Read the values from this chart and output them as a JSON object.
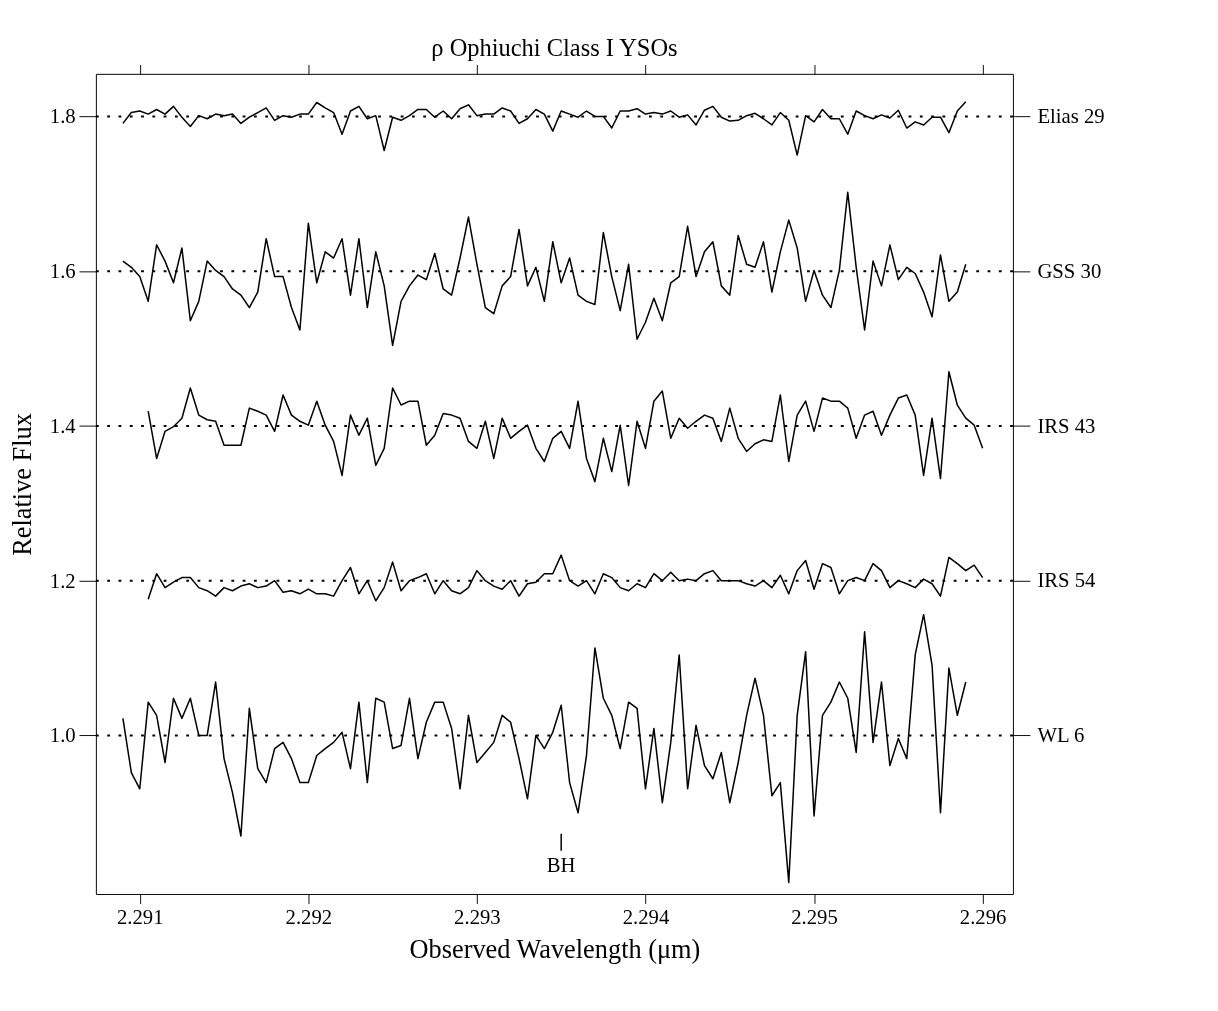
{
  "chart_data": {
    "type": "line",
    "title": "ρ Ophiuchi Class I YSOs",
    "xlabel": "Observed Wavelength (μm)",
    "ylabel": "Relative Flux",
    "x": [
      2.2909,
      2.29095,
      2.291,
      2.29105,
      2.2911,
      2.29115,
      2.2912,
      2.29125,
      2.2913,
      2.29135,
      2.2914,
      2.29145,
      2.2915,
      2.29155,
      2.2916,
      2.29165,
      2.2917,
      2.29175,
      2.2918,
      2.29185,
      2.2919,
      2.29195,
      2.292,
      2.29205,
      2.2921,
      2.29215,
      2.2922,
      2.29225,
      2.2923,
      2.29235,
      2.2924,
      2.29245,
      2.2925,
      2.29255,
      2.2926,
      2.29265,
      2.2927,
      2.29275,
      2.2928,
      2.29285,
      2.2929,
      2.29295,
      2.293,
      2.29305,
      2.2931,
      2.29315,
      2.2932,
      2.29325,
      2.2933,
      2.29335,
      2.2934,
      2.29345,
      2.2935,
      2.29355,
      2.2936,
      2.29365,
      2.2937,
      2.29375,
      2.2938,
      2.29385,
      2.2939,
      2.29395,
      2.294,
      2.29405,
      2.2941,
      2.29415,
      2.2942,
      2.29425,
      2.2943,
      2.29435,
      2.2944,
      2.29445,
      2.2945,
      2.29455,
      2.2946,
      2.29465,
      2.2947,
      2.29475,
      2.2948,
      2.29485,
      2.2949,
      2.29495,
      2.295,
      2.29505,
      2.2951,
      2.29515,
      2.2952,
      2.29525,
      2.2953,
      2.29535,
      2.2954,
      2.29545,
      2.2955,
      2.29555,
      2.2956,
      2.29565,
      2.2957,
      2.29575,
      2.2958,
      2.29585,
      2.2959,
      2.29595,
      2.296
    ],
    "series": [
      {
        "name": "Elias 29",
        "color": "#000000",
        "values": [
          1.791,
          1.805,
          1.807,
          1.803,
          1.809,
          1.803,
          1.813,
          1.799,
          1.787,
          1.801,
          1.797,
          1.803,
          1.801,
          1.803,
          1.791,
          1.799,
          1.805,
          1.811,
          1.795,
          1.801,
          1.799,
          1.803,
          1.803,
          1.818,
          1.811,
          1.805,
          1.777,
          1.807,
          1.813,
          1.797,
          1.801,
          1.756,
          1.799,
          1.795,
          1.801,
          1.809,
          1.809,
          1.799,
          1.807,
          1.797,
          1.81,
          1.815,
          1.801,
          1.803,
          1.803,
          1.811,
          1.807,
          1.791,
          1.797,
          1.809,
          1.803,
          1.781,
          1.807,
          1.803,
          1.799,
          1.807,
          1.8,
          1.8,
          1.785,
          1.807,
          1.807,
          1.81,
          1.803,
          1.805,
          1.803,
          1.807,
          1.799,
          1.802,
          1.789,
          1.808,
          1.813,
          1.799,
          1.794,
          1.795,
          1.801,
          1.804,
          1.797,
          1.789,
          1.805,
          1.795,
          1.75,
          1.801,
          1.793,
          1.809,
          1.797,
          1.797,
          1.777,
          1.807,
          1.801,
          1.797,
          1.802,
          1.798,
          1.808,
          1.785,
          1.793,
          1.789,
          1.799,
          1.799,
          1.779,
          1.807,
          1.819,
          null,
          null
        ]
      },
      {
        "name": "GSS 30",
        "color": "#000000",
        "values": [
          1.613,
          1.605,
          1.593,
          1.561,
          1.634,
          1.613,
          1.585,
          1.63,
          1.536,
          1.561,
          1.613,
          1.601,
          1.593,
          1.577,
          1.569,
          1.553,
          1.573,
          1.642,
          1.593,
          1.593,
          1.553,
          1.524,
          1.662,
          1.585,
          1.625,
          1.617,
          1.642,
          1.569,
          1.642,
          1.553,
          1.625,
          1.581,
          1.504,
          1.561,
          1.581,
          1.595,
          1.589,
          1.623,
          1.577,
          1.569,
          1.617,
          1.67,
          1.609,
          1.553,
          1.545,
          1.581,
          1.593,
          1.654,
          1.581,
          1.605,
          1.561,
          1.638,
          1.585,
          1.617,
          1.569,
          1.561,
          1.557,
          1.65,
          1.593,
          1.549,
          1.609,
          1.512,
          1.534,
          1.565,
          1.536,
          1.585,
          1.593,
          1.658,
          1.593,
          1.625,
          1.638,
          1.581,
          1.569,
          1.646,
          1.609,
          1.605,
          1.638,
          1.573,
          1.625,
          1.666,
          1.63,
          1.561,
          1.601,
          1.569,
          1.553,
          1.601,
          1.702,
          1.605,
          1.524,
          1.613,
          1.581,
          1.634,
          1.589,
          1.605,
          1.597,
          1.573,
          1.541,
          1.621,
          1.561,
          1.573,
          1.609,
          null,
          null
        ]
      },
      {
        "name": "IRS 43",
        "color": "#000000",
        "values": [
          null,
          null,
          null,
          1.419,
          1.358,
          1.393,
          1.399,
          1.41,
          1.449,
          1.414,
          1.408,
          1.406,
          1.375,
          1.375,
          1.375,
          1.423,
          1.419,
          1.414,
          1.393,
          1.44,
          1.414,
          1.406,
          1.401,
          1.432,
          1.401,
          1.38,
          1.336,
          1.414,
          1.388,
          1.41,
          1.349,
          1.371,
          1.449,
          1.427,
          1.432,
          1.432,
          1.375,
          1.388,
          1.416,
          1.414,
          1.41,
          1.38,
          1.371,
          1.406,
          1.358,
          1.41,
          1.384,
          1.393,
          1.401,
          1.371,
          1.354,
          1.384,
          1.393,
          1.371,
          1.432,
          1.358,
          1.328,
          1.384,
          1.341,
          1.401,
          1.323,
          1.406,
          1.371,
          1.432,
          1.445,
          1.384,
          1.41,
          1.397,
          1.406,
          1.414,
          1.41,
          1.38,
          1.423,
          1.384,
          1.367,
          1.377,
          1.382,
          1.38,
          1.44,
          1.354,
          1.414,
          1.432,
          1.393,
          1.436,
          1.432,
          1.432,
          1.423,
          1.384,
          1.414,
          1.419,
          1.388,
          1.414,
          1.436,
          1.44,
          1.414,
          1.336,
          1.41,
          1.332,
          1.47,
          1.427,
          1.41,
          1.401,
          1.371
        ]
      },
      {
        "name": "IRS 54",
        "color": "#000000",
        "values": [
          null,
          null,
          null,
          1.176,
          1.209,
          1.191,
          1.198,
          1.204,
          1.204,
          1.191,
          1.187,
          1.18,
          1.191,
          1.187,
          1.193,
          1.196,
          1.191,
          1.193,
          1.2,
          1.185,
          1.187,
          1.183,
          1.189,
          1.183,
          1.183,
          1.18,
          1.2,
          1.217,
          1.183,
          1.2,
          1.174,
          1.191,
          1.224,
          1.187,
          1.2,
          1.204,
          1.209,
          1.183,
          1.2,
          1.187,
          1.183,
          1.191,
          1.213,
          1.2,
          1.193,
          1.189,
          1.2,
          1.18,
          1.196,
          1.198,
          1.209,
          1.209,
          1.233,
          1.2,
          1.193,
          1.2,
          1.183,
          1.209,
          1.204,
          1.191,
          1.187,
          1.196,
          1.191,
          1.209,
          1.2,
          1.211,
          1.2,
          1.202,
          1.2,
          1.209,
          1.213,
          1.2,
          1.2,
          1.2,
          1.196,
          1.193,
          1.2,
          1.191,
          1.207,
          1.183,
          1.213,
          1.226,
          1.189,
          1.222,
          1.217,
          1.183,
          1.2,
          1.204,
          1.2,
          1.222,
          1.213,
          1.191,
          1.2,
          1.196,
          1.191,
          1.202,
          1.196,
          1.18,
          1.23,
          1.222,
          1.213,
          1.22,
          1.204
        ]
      },
      {
        "name": "WL 6",
        "color": "#000000",
        "values": [
          1.022,
          0.952,
          0.931,
          1.043,
          1.026,
          0.965,
          1.048,
          1.022,
          1.048,
          1.0,
          1.0,
          1.069,
          0.97,
          0.926,
          0.87,
          1.035,
          0.957,
          0.939,
          0.983,
          0.991,
          0.97,
          0.939,
          0.939,
          0.974,
          0.983,
          0.991,
          1.004,
          0.957,
          1.043,
          0.939,
          1.048,
          1.043,
          0.983,
          0.987,
          1.048,
          0.97,
          1.017,
          1.043,
          1.043,
          1.009,
          0.931,
          1.026,
          0.965,
          0.978,
          0.991,
          1.026,
          1.017,
          0.97,
          0.918,
          1.0,
          0.983,
          1.004,
          1.039,
          0.939,
          0.9,
          0.974,
          1.113,
          1.048,
          1.026,
          0.983,
          1.043,
          1.035,
          0.931,
          1.009,
          0.913,
          0.991,
          1.104,
          0.931,
          1.013,
          0.961,
          0.944,
          0.978,
          0.913,
          0.965,
          1.026,
          1.074,
          1.026,
          0.922,
          0.939,
          0.81,
          1.026,
          1.108,
          0.896,
          1.026,
          1.043,
          1.069,
          1.048,
          0.978,
          1.134,
          0.991,
          1.069,
          0.961,
          0.996,
          0.97,
          1.104,
          1.156,
          1.091,
          0.9,
          1.087,
          1.026,
          1.069,
          null,
          null
        ]
      }
    ],
    "ref_lines": [
      {
        "axis": "y",
        "value": 1.8,
        "color": "#000000",
        "line_style": "dotted"
      },
      {
        "axis": "y",
        "value": 1.6,
        "color": "#000000",
        "line_style": "dotted"
      },
      {
        "axis": "y",
        "value": 1.4,
        "color": "#000000",
        "line_style": "dotted"
      },
      {
        "axis": "y",
        "value": 1.2,
        "color": "#000000",
        "line_style": "dotted"
      },
      {
        "axis": "y",
        "value": 1.0,
        "color": "#000000",
        "line_style": "dotted"
      },
      {
        "axis": "x",
        "value": 2.2935,
        "label": "BH",
        "color": "#000000",
        "line_style": "solid"
      }
    ],
    "legend": "right",
    "xlim": [
      2.29074,
      2.29618
    ],
    "ylim": [
      0.795,
      1.855
    ],
    "xticks": [
      2.291,
      2.292,
      2.293,
      2.294,
      2.295,
      2.296
    ],
    "yticks": [
      {
        "value": 1.0,
        "label": "1.0"
      },
      1.2,
      1.4,
      1.6,
      1.8
    ],
    "grid": false,
    "marker": "none",
    "line_style": "solid"
  }
}
